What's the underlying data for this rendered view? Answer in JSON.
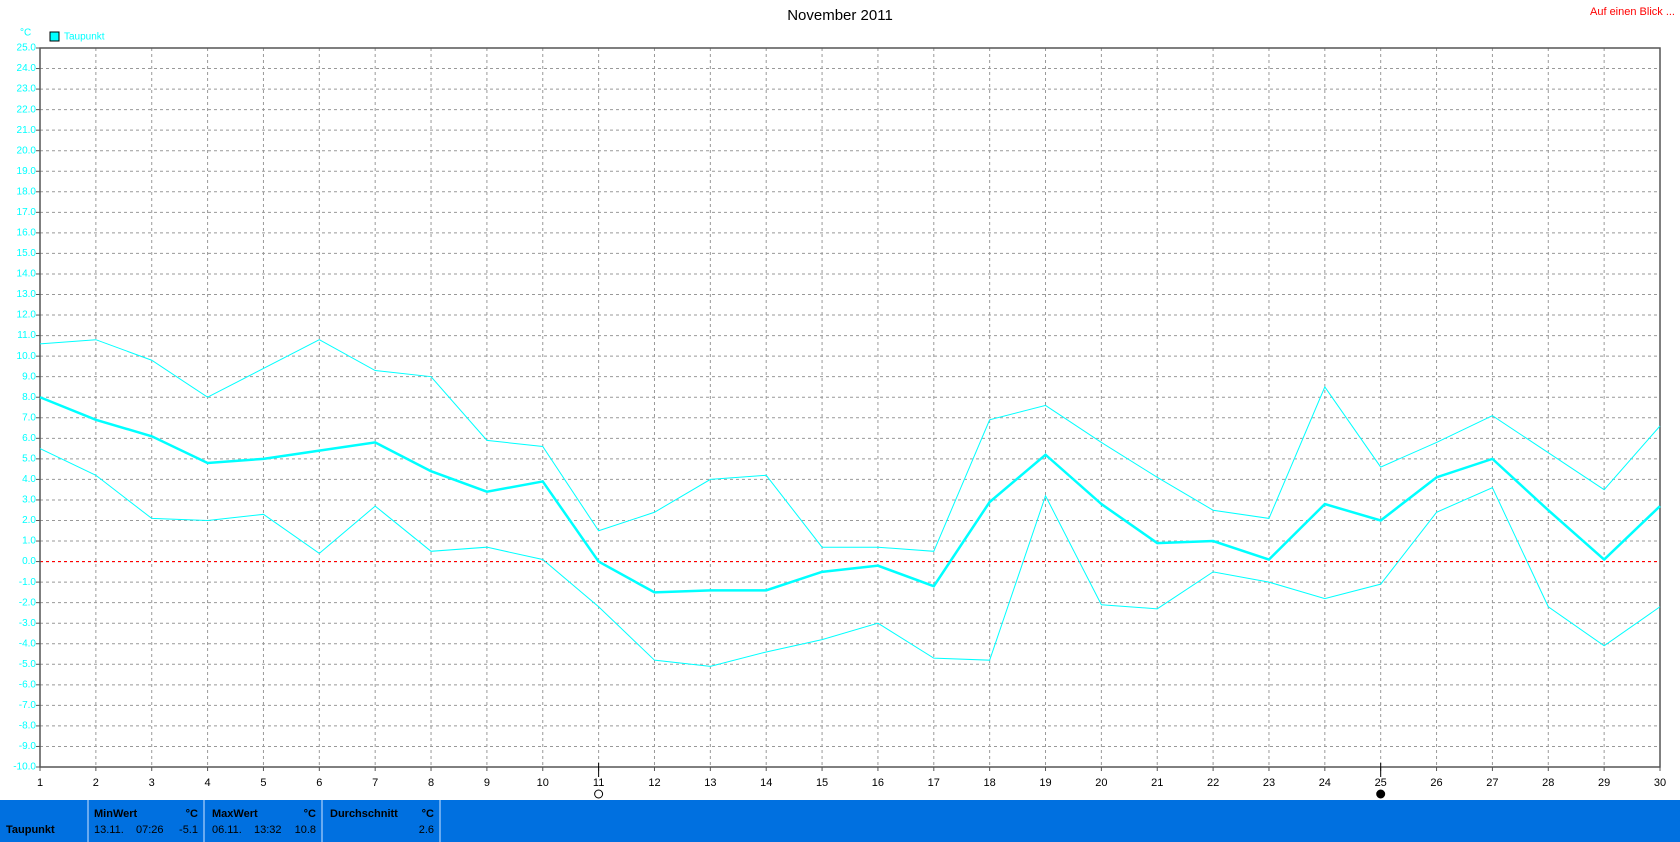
{
  "chart_data": {
    "type": "line",
    "title": "November 2011",
    "y_unit": "°C",
    "x": [
      1,
      2,
      3,
      4,
      5,
      6,
      7,
      8,
      9,
      10,
      11,
      12,
      13,
      14,
      15,
      16,
      17,
      18,
      19,
      20,
      21,
      22,
      23,
      24,
      25,
      26,
      27,
      28,
      29,
      30
    ],
    "series": [
      {
        "name": "Taupunkt",
        "color": "#00ffff",
        "width": 2.5,
        "values": [
          8.0,
          6.9,
          6.1,
          4.8,
          5.0,
          5.4,
          5.8,
          4.4,
          3.4,
          3.9,
          0.0,
          -1.5,
          -1.4,
          -1.4,
          -0.5,
          -0.2,
          -1.2,
          2.9,
          5.2,
          2.8,
          0.9,
          1.0,
          0.1,
          2.8,
          2.0,
          4.1,
          5.0,
          2.5,
          0.1,
          2.7
        ]
      },
      {
        "color": "#00ffff",
        "width": 1,
        "values": [
          10.6,
          10.8,
          9.8,
          8.0,
          9.4,
          10.8,
          9.3,
          9.0,
          5.9,
          5.6,
          1.5,
          2.4,
          4.0,
          4.2,
          0.7,
          0.7,
          0.5,
          6.9,
          7.6,
          5.8,
          4.1,
          2.5,
          2.1,
          8.5,
          4.6,
          5.8,
          7.1,
          5.3,
          3.5,
          6.6
        ]
      },
      {
        "color": "#00ffff",
        "width": 1,
        "values": [
          5.5,
          4.2,
          2.1,
          2.0,
          2.3,
          0.4,
          2.7,
          0.5,
          0.7,
          0.1,
          -2.2,
          -4.8,
          -5.1,
          -4.4,
          -3.8,
          -3.0,
          -4.7,
          -4.8,
          3.2,
          -2.1,
          -2.3,
          -0.5,
          -1.0,
          -1.8,
          -1.1,
          2.4,
          3.6,
          -2.2,
          -4.1,
          -2.2
        ]
      }
    ],
    "xlim": [
      1,
      30
    ],
    "xticks": [
      1,
      2,
      3,
      4,
      5,
      6,
      7,
      8,
      9,
      10,
      11,
      12,
      13,
      14,
      15,
      16,
      17,
      18,
      19,
      20,
      21,
      22,
      23,
      24,
      25,
      26,
      27,
      28,
      29,
      30
    ],
    "ylim": [
      -10,
      25
    ],
    "yticks": [
      {
        "value": 25,
        "label": "25.0"
      },
      {
        "value": 24,
        "label": "24.0"
      },
      {
        "value": 23,
        "label": "23.0"
      },
      {
        "value": 22,
        "label": "22.0"
      },
      {
        "value": 21,
        "label": "21.0"
      },
      {
        "value": 20,
        "label": "20.0"
      },
      {
        "value": 19,
        "label": "19.0"
      },
      {
        "value": 18,
        "label": "18.0"
      },
      {
        "value": 17,
        "label": "17.0"
      },
      {
        "value": 16,
        "label": "16.0"
      },
      {
        "value": 15,
        "label": "15.0"
      },
      {
        "value": 14,
        "label": "14.0"
      },
      {
        "value": 13,
        "label": "13.0"
      },
      {
        "value": 12,
        "label": "12.0"
      },
      {
        "value": 11,
        "label": "11.0"
      },
      {
        "value": 10,
        "label": "10.0"
      },
      {
        "value": 9,
        "label": "9.0"
      },
      {
        "value": 8,
        "label": "8.0"
      },
      {
        "value": 7,
        "label": "7.0"
      },
      {
        "value": 6,
        "label": "6.0"
      },
      {
        "value": 5,
        "label": "5.0"
      },
      {
        "value": 4,
        "label": "4.0"
      },
      {
        "value": 3,
        "label": "3.0"
      },
      {
        "value": 2,
        "label": "2.0"
      },
      {
        "value": 1,
        "label": "1.0"
      },
      {
        "value": 0,
        "label": "0.0"
      },
      {
        "value": -1,
        "label": "-1.0"
      },
      {
        "value": -2,
        "label": "-2.0"
      },
      {
        "value": -3,
        "label": "-3.0"
      },
      {
        "value": -4,
        "label": "-4.0"
      },
      {
        "value": -5,
        "label": "-5.0"
      },
      {
        "value": -6,
        "label": "-6.0"
      },
      {
        "value": -7,
        "label": "-7.0"
      },
      {
        "value": -8,
        "label": "-8.0"
      },
      {
        "value": -9,
        "label": "-9.0"
      },
      {
        "value": -10,
        "label": "-10.0"
      }
    ],
    "grid": true,
    "reference_line": {
      "value": 0,
      "color": "#ff0000"
    },
    "moon_phases": [
      {
        "x": 11,
        "filled": false
      },
      {
        "x": 25,
        "filled": true
      }
    ]
  },
  "header_link": "Auf einen Blick ...",
  "stats": {
    "row_label": "Taupunkt",
    "min": {
      "label": "MinWert",
      "unit": "°C",
      "date": "13.11.",
      "time": "07:26",
      "value": -5.1
    },
    "max": {
      "label": "MaxWert",
      "unit": "°C",
      "date": "06.11.",
      "time": "13:32",
      "value": 10.8
    },
    "avg": {
      "label": "Durchschnitt",
      "unit": "°C",
      "value": 2.6
    }
  }
}
